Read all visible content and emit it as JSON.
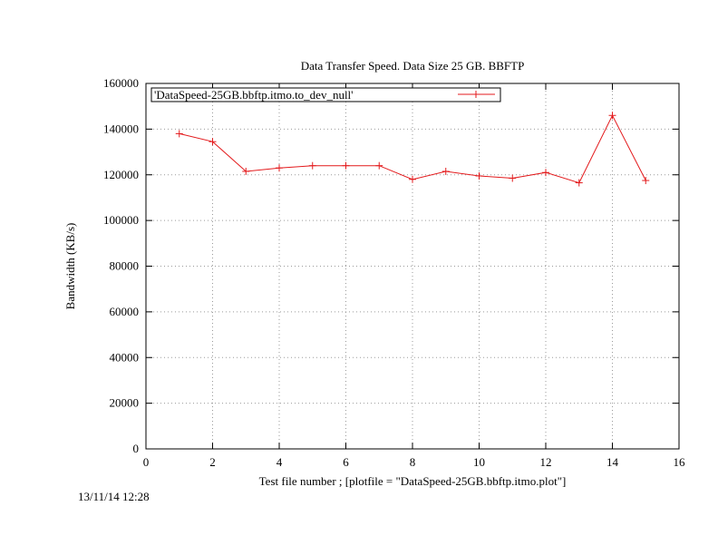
{
  "timestamp": "13/11/14 12:28",
  "chart_data": {
    "type": "line",
    "title": "Data Transfer Speed. Data Size 25 GB. BBFTP",
    "xlabel": "Test file number ; [plotfile = \"DataSpeed-25GB.bbftp.itmo.plot\"]",
    "ylabel": "Bandwidth (KB/s)",
    "xlim": [
      0,
      16
    ],
    "ylim": [
      0,
      160000
    ],
    "xticks": [
      0,
      2,
      4,
      6,
      8,
      10,
      12,
      14,
      16
    ],
    "yticks": [
      0,
      20000,
      40000,
      60000,
      80000,
      100000,
      120000,
      140000,
      160000
    ],
    "grid": true,
    "legend_position": "top-left",
    "series": [
      {
        "name": "'DataSpeed-25GB.bbftp.itmo.to_dev_null'",
        "color": "#e31a1c",
        "marker": "plus",
        "x": [
          1,
          2,
          3,
          4,
          5,
          6,
          7,
          8,
          9,
          10,
          11,
          12,
          13,
          14,
          15
        ],
        "y": [
          138000,
          134500,
          121500,
          123000,
          124000,
          124000,
          124000,
          118000,
          121500,
          119500,
          118500,
          121000,
          116500,
          146000,
          117500
        ]
      }
    ]
  }
}
